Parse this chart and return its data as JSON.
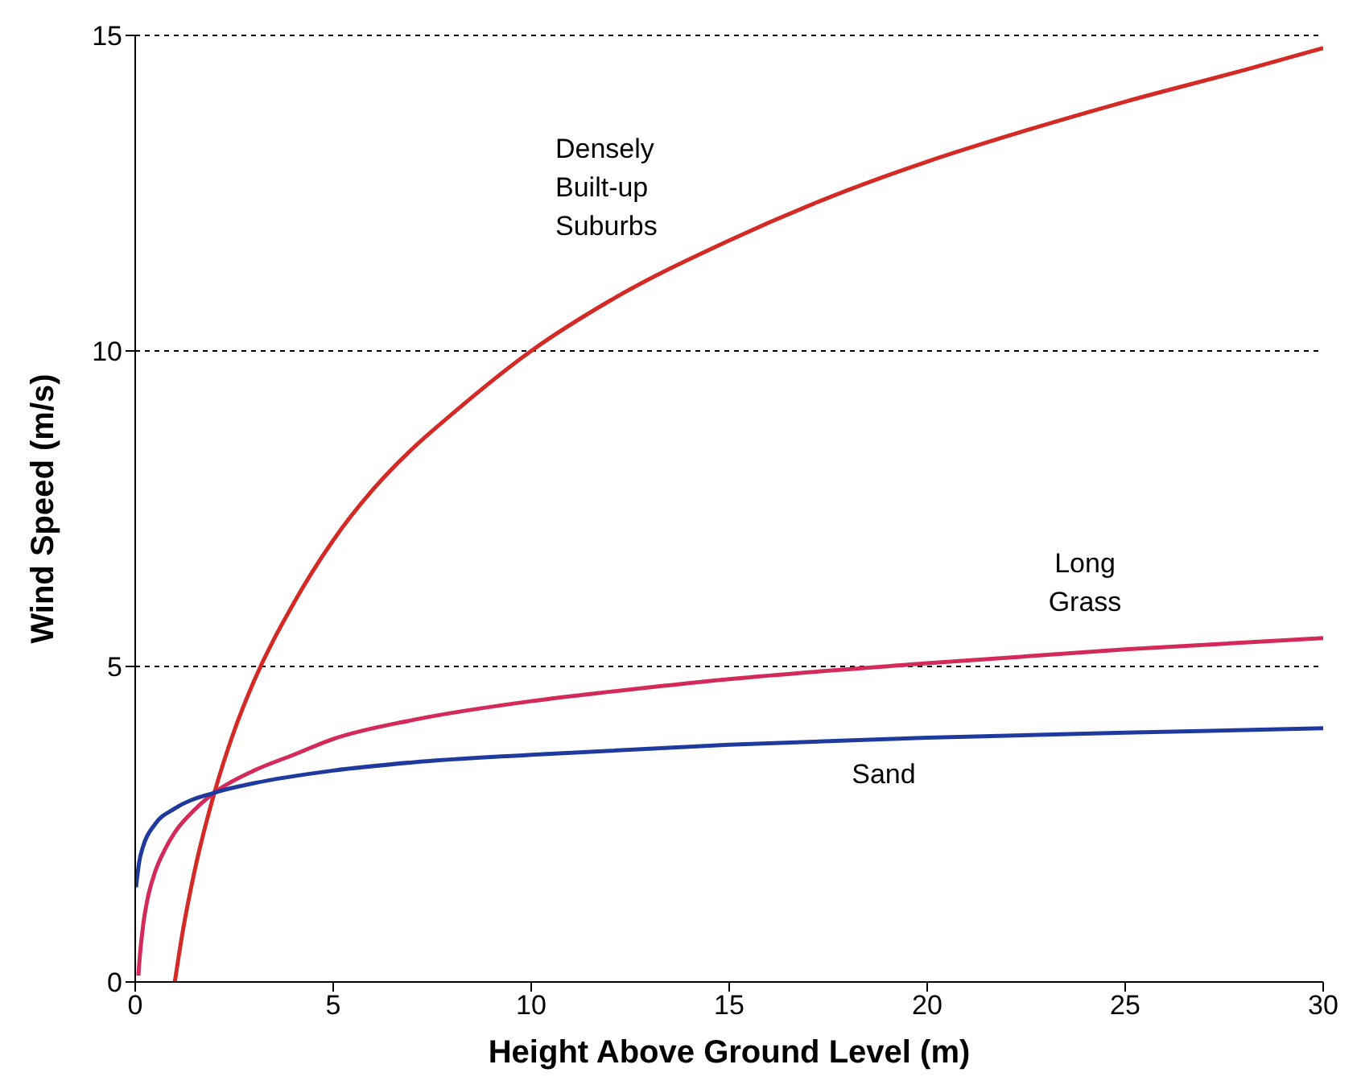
{
  "chart_data": {
    "type": "line",
    "xlabel": "Height Above Ground Level (m)",
    "ylabel": "Wind Speed (m/s)",
    "xlim": [
      0,
      30
    ],
    "xticks": [
      0,
      5,
      10,
      15,
      20,
      25,
      30
    ],
    "ylim": [
      0,
      15
    ],
    "yticks": [
      0,
      5,
      10,
      15
    ],
    "grid": "y",
    "legend": false,
    "marker": "none",
    "line_style": "solid",
    "series": [
      {
        "name": "Densely Built-up Suburbs",
        "color": "#d42a25",
        "x": [
          1,
          1.2,
          1.5,
          2,
          2.5,
          3,
          4,
          5,
          6,
          7,
          8,
          10,
          12,
          15,
          18,
          20,
          22,
          25,
          28,
          30
        ],
        "values": [
          0,
          0.8,
          1.76,
          3,
          3.98,
          4.77,
          6,
          7,
          7.8,
          8.45,
          9,
          10,
          10.8,
          11.75,
          12.55,
          13,
          13.4,
          13.95,
          14.45,
          14.8
        ]
      },
      {
        "name": "Long Grass",
        "color": "#d42a5a",
        "x": [
          0.08,
          0.1,
          0.2,
          0.3,
          0.5,
          0.75,
          1,
          1.5,
          2,
          3,
          4,
          5,
          7,
          10,
          12,
          15,
          20,
          25,
          30
        ],
        "values": [
          0.1,
          0.28,
          0.9,
          1.28,
          1.74,
          2.1,
          2.37,
          2.73,
          3,
          3.35,
          3.6,
          3.85,
          4.15,
          4.45,
          4.6,
          4.8,
          5.05,
          5.27,
          5.45
        ]
      },
      {
        "name": "Sand",
        "color": "#1f3a9e",
        "x": [
          0.02,
          0.1,
          0.2,
          0.5,
          1,
          2,
          3,
          5,
          7,
          10,
          15,
          20,
          25,
          30
        ],
        "values": [
          1.5,
          1.9,
          2.15,
          2.5,
          2.75,
          3,
          3.15,
          3.35,
          3.48,
          3.6,
          3.76,
          3.87,
          3.95,
          4.02
        ]
      }
    ]
  }
}
